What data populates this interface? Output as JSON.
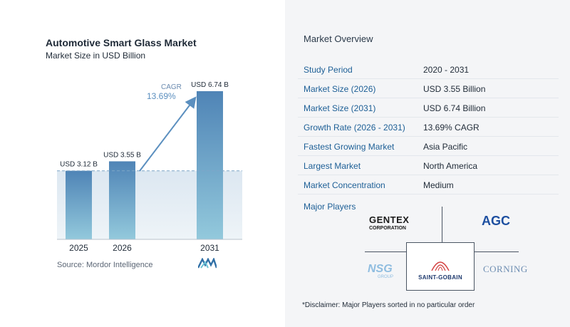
{
  "chart_data": {
    "type": "bar",
    "title": "Automotive Smart Glass Market",
    "subtitle": "Market Size in USD Billion",
    "categories": [
      "2025",
      "2026",
      "2031"
    ],
    "values": [
      3.12,
      3.55,
      6.74
    ],
    "value_labels": [
      "USD 3.12 B",
      "USD 3.55 B",
      "USD 6.74 B"
    ],
    "cagr_label": "CAGR",
    "cagr_value": "13.69%",
    "colors": {
      "bar": "#5b8fbf",
      "bar_top": "#4f84b6",
      "bar_bottom": "#93c9dc",
      "baseline_fill": "#dfe9f2",
      "arrow": "#5b8fbf"
    },
    "grid": false
  },
  "source": "Source:  Mordor Intelligence",
  "overview": {
    "title": "Market Overview",
    "rows": [
      {
        "key": "Study Period",
        "value": "2020 - 2031"
      },
      {
        "key": "Market Size (2026)",
        "value": "USD 3.55 Billion"
      },
      {
        "key": "Market Size (2031)",
        "value": "USD 6.74 Billion"
      },
      {
        "key": "Growth Rate (2026 - 2031)",
        "value": "13.69% CAGR"
      },
      {
        "key": "Fastest Growing Market",
        "value": "Asia Pacific"
      },
      {
        "key": "Largest Market",
        "value": "North America"
      },
      {
        "key": "Market Concentration",
        "value": "Medium"
      }
    ],
    "players_label": "Major Players",
    "players": {
      "gentex_line1": "GENTEX",
      "gentex_line2": "CORPORATION",
      "agc": "AGC",
      "nsg": "NSG",
      "nsg_sub": "GROUP",
      "saint_gobain": "SAINT-GOBAIN",
      "corning": "CORNING"
    },
    "disclaimer": "*Disclaimer: Major Players sorted in no particular order"
  }
}
